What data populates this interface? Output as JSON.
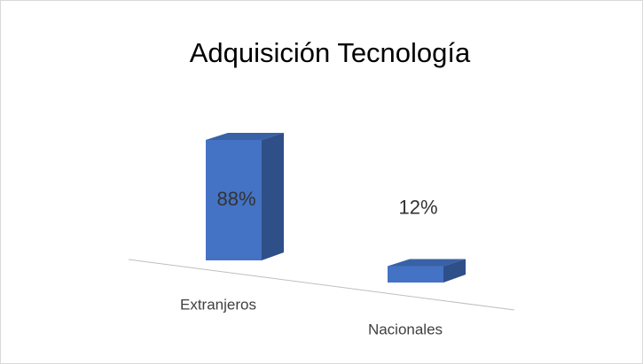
{
  "chart_data": {
    "type": "bar",
    "title": "Adquisición Tecnología",
    "categories": [
      "Extranjeros",
      "Nacionales"
    ],
    "values": [
      88,
      12
    ],
    "value_labels": [
      "88%",
      "12%"
    ],
    "color": "#4472c4"
  }
}
